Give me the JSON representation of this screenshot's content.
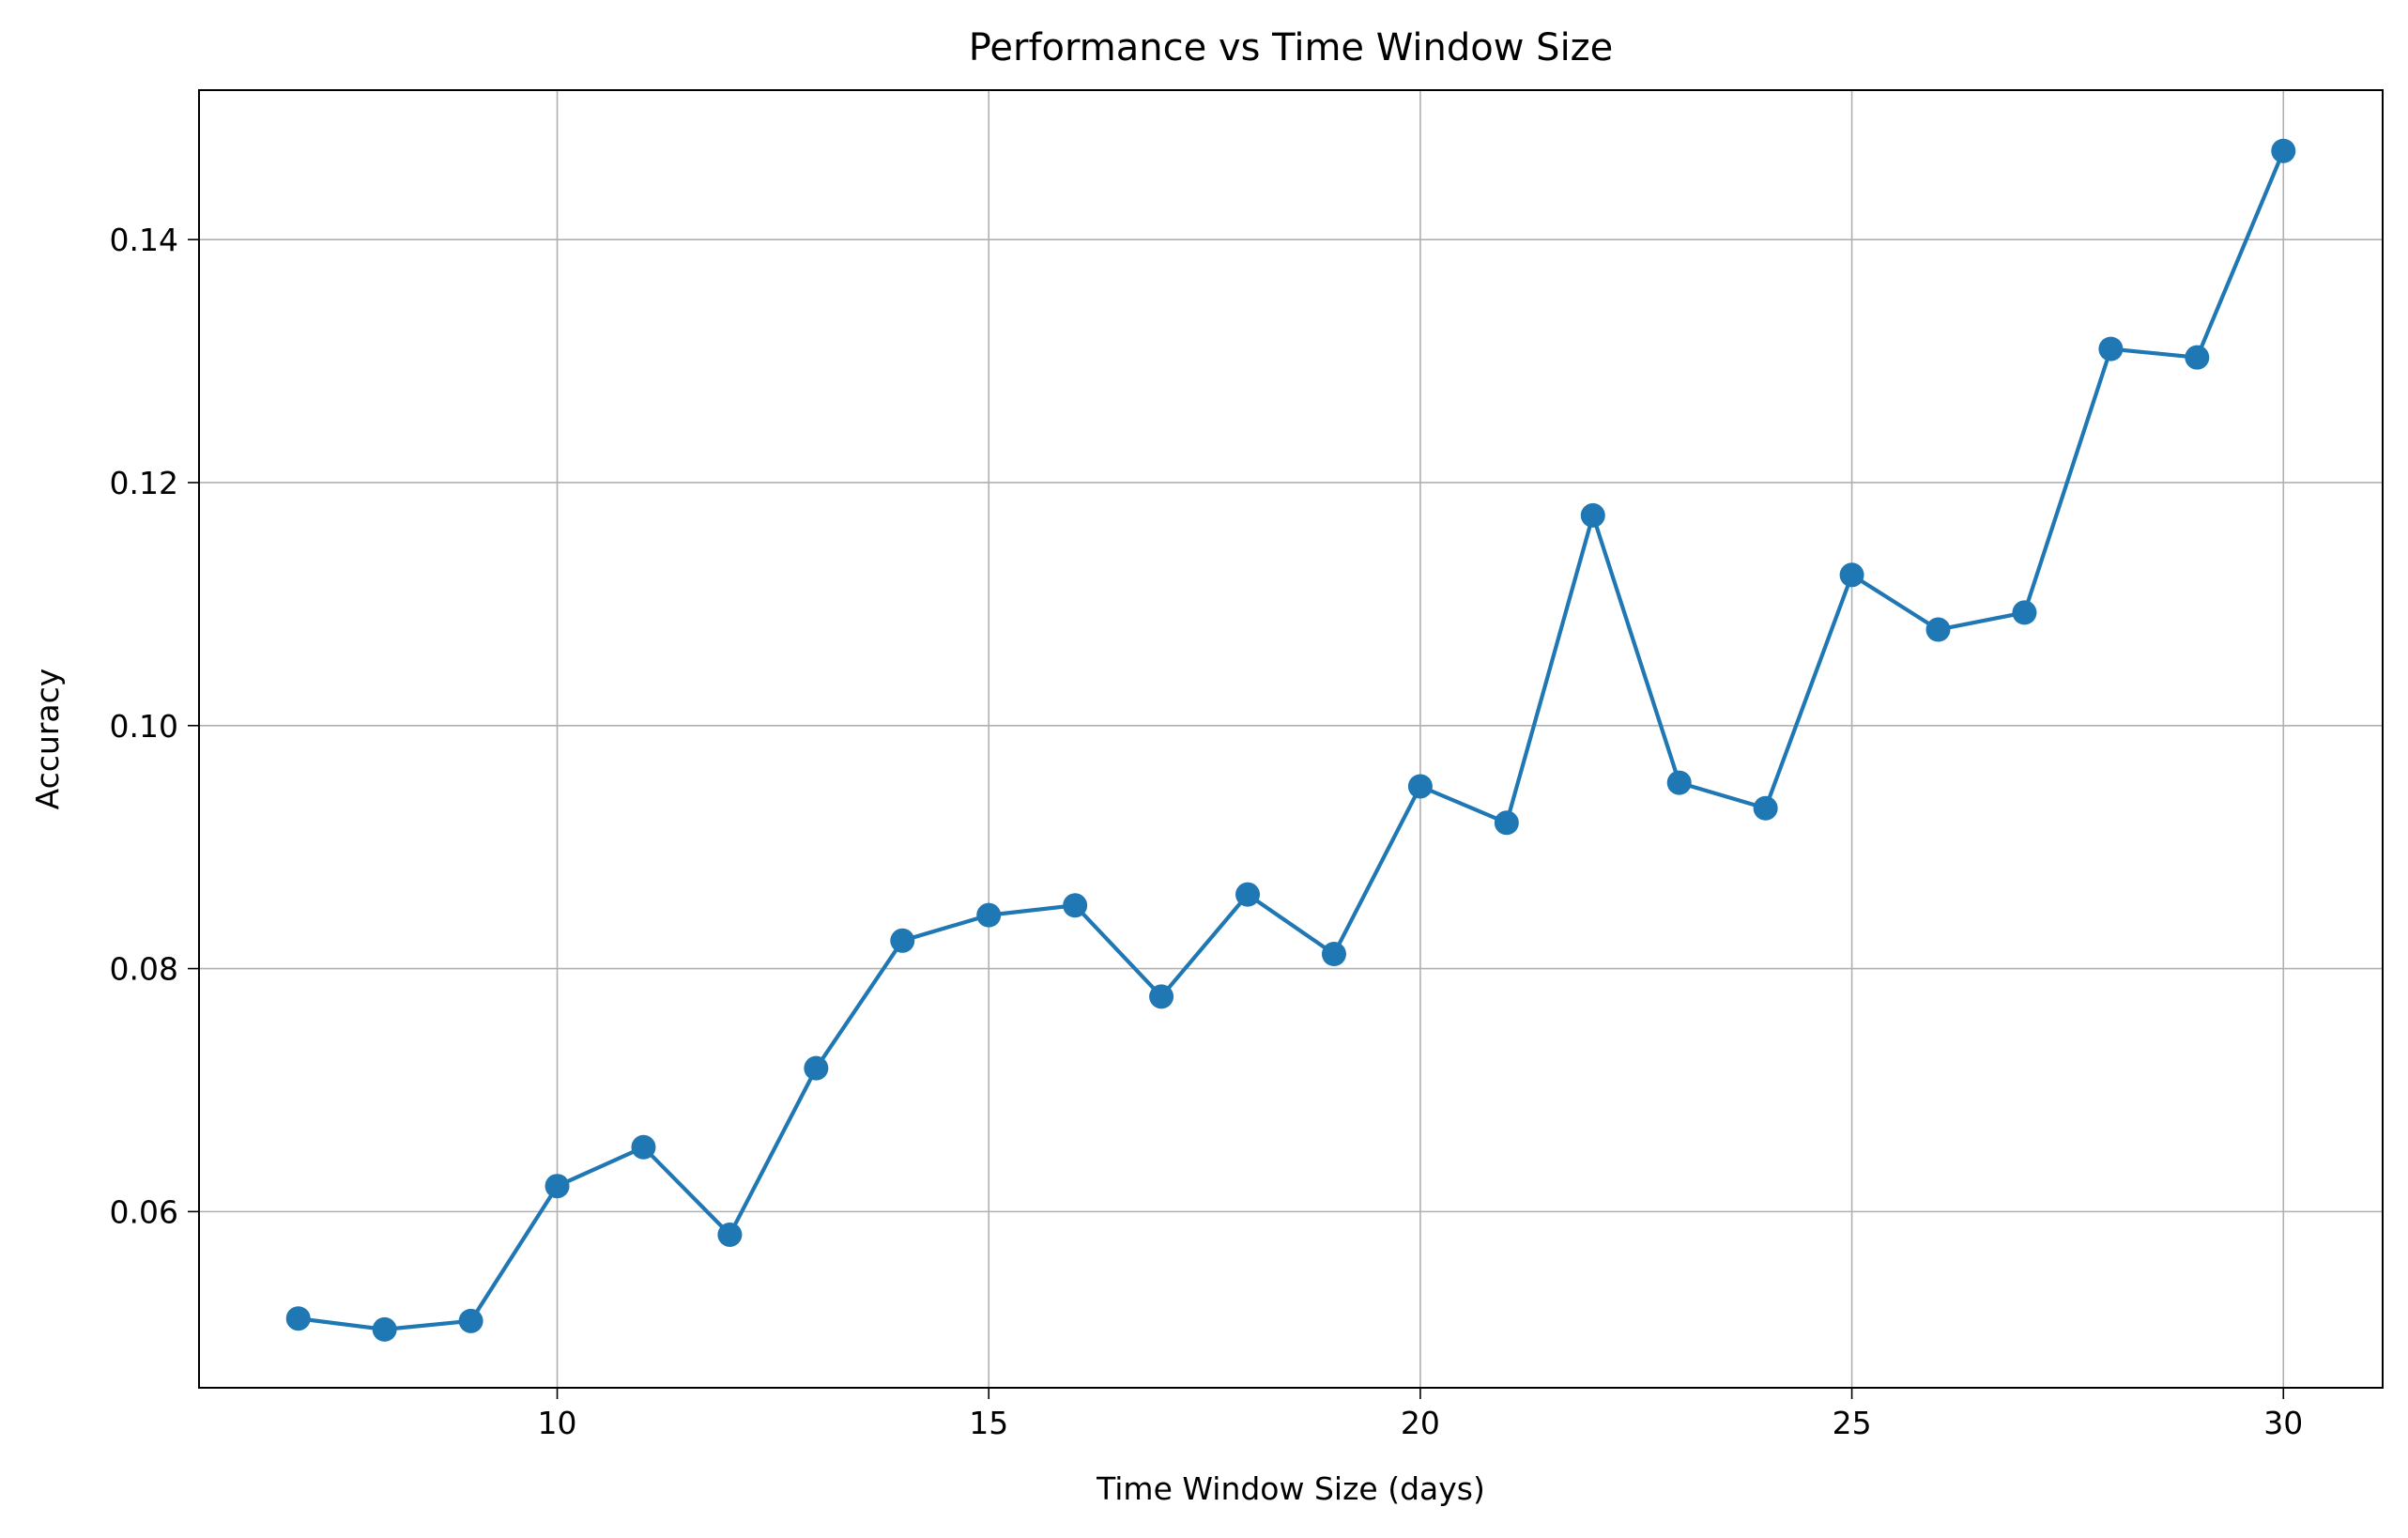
{
  "chart_data": {
    "type": "line",
    "title": "Performance vs Time Window Size",
    "xlabel": "Time Window Size (days)",
    "ylabel": "Accuracy",
    "xlim": [
      5.85,
      31.15
    ],
    "ylim": [
      0.0455,
      0.1523
    ],
    "xticks": [
      10,
      15,
      20,
      25,
      30
    ],
    "yticks": [
      0.06,
      0.08,
      0.1,
      0.12,
      0.14
    ],
    "ytick_labels": [
      "0.06",
      "0.08",
      "0.10",
      "0.12",
      "0.14"
    ],
    "grid": true,
    "marker": "circle",
    "colors": {
      "series": "#1f77b4",
      "grid": "#b0b0b0"
    },
    "series": [
      {
        "x": [
          7,
          8,
          9,
          10,
          11,
          12,
          13,
          14,
          15,
          16,
          17,
          18,
          19,
          20,
          21,
          22,
          23,
          24,
          25,
          26,
          27,
          28,
          29,
          30
        ],
        "values": [
          0.0512,
          0.0503,
          0.051,
          0.0621,
          0.0653,
          0.0581,
          0.0718,
          0.0823,
          0.0844,
          0.0852,
          0.0777,
          0.0861,
          0.0812,
          0.095,
          0.092,
          0.1173,
          0.0953,
          0.0932,
          0.1124,
          0.1079,
          0.1093,
          0.131,
          0.1303,
          0.1473
        ]
      }
    ]
  }
}
